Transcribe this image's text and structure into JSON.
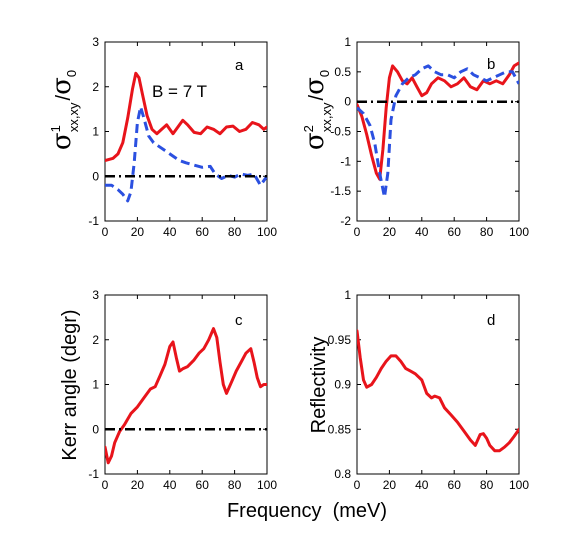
{
  "figure": {
    "xlabel": "Frequency  (meV)"
  },
  "chart_data": [
    {
      "panel": "a",
      "type": "line",
      "annotation": "B = 7 T",
      "ylabel": "σxx,xy1/σ0",
      "xlim": [
        0,
        100
      ],
      "ylim": [
        -1,
        3
      ],
      "xticks": [
        0,
        20,
        40,
        60,
        80,
        100
      ],
      "yticks": [
        -1,
        0,
        1,
        2,
        3
      ],
      "series": [
        {
          "style": "solid",
          "color": "#e8141b",
          "x": [
            0,
            5,
            8,
            11,
            14,
            17,
            19,
            21,
            23,
            26,
            29,
            32,
            35,
            38,
            42,
            45,
            48,
            51,
            55,
            59,
            63,
            67,
            71,
            75,
            79,
            83,
            87,
            91,
            95,
            98,
            100
          ],
          "y": [
            0.35,
            0.4,
            0.5,
            0.75,
            1.3,
            1.95,
            2.3,
            2.2,
            1.85,
            1.35,
            1.05,
            0.95,
            1.05,
            1.15,
            0.95,
            1.1,
            1.25,
            1.15,
            0.98,
            0.95,
            1.1,
            1.05,
            0.95,
            1.1,
            1.12,
            1.0,
            1.05,
            1.2,
            1.15,
            1.05,
            1.1
          ]
        },
        {
          "style": "dashed",
          "color": "#2b50e0",
          "x": [
            0,
            4,
            8,
            11,
            14,
            16,
            18,
            20,
            22,
            24,
            27,
            30,
            34,
            38,
            42,
            46,
            50,
            55,
            60,
            65,
            68,
            72,
            76,
            80,
            84,
            88,
            92,
            96,
            100
          ],
          "y": [
            -0.2,
            -0.2,
            -0.3,
            -0.4,
            -0.55,
            -0.35,
            0.3,
            1.2,
            1.55,
            1.3,
            0.9,
            0.75,
            0.65,
            0.55,
            0.45,
            0.35,
            0.3,
            0.25,
            0.2,
            0.22,
            0.05,
            -0.05,
            0.02,
            -0.02,
            0.05,
            0.02,
            0.05,
            -0.2,
            0.0
          ]
        },
        {
          "style": "dashdot",
          "color": "#000000",
          "x": [
            0,
            100
          ],
          "y": [
            0,
            0
          ]
        }
      ]
    },
    {
      "panel": "b",
      "type": "line",
      "ylabel": "σxx,xy2/σ0",
      "xlim": [
        0,
        100
      ],
      "ylim": [
        -2,
        1
      ],
      "xticks": [
        0,
        20,
        40,
        60,
        80,
        100
      ],
      "yticks": [
        -2,
        -1.5,
        -1,
        -0.5,
        0,
        0.5,
        1
      ],
      "series": [
        {
          "style": "solid",
          "color": "#e8141b",
          "x": [
            0,
            3,
            6,
            9,
            12,
            14,
            16,
            18,
            20,
            22,
            25,
            28,
            31,
            34,
            37,
            40,
            43,
            46,
            50,
            54,
            58,
            62,
            66,
            70,
            74,
            78,
            82,
            86,
            90,
            94,
            97,
            100
          ],
          "y": [
            -0.05,
            -0.25,
            -0.55,
            -0.9,
            -1.2,
            -1.3,
            -0.8,
            -0.1,
            0.4,
            0.6,
            0.5,
            0.35,
            0.3,
            0.4,
            0.25,
            0.1,
            0.15,
            0.3,
            0.4,
            0.35,
            0.25,
            0.3,
            0.4,
            0.25,
            0.2,
            0.35,
            0.3,
            0.35,
            0.3,
            0.45,
            0.6,
            0.65
          ]
        },
        {
          "style": "dashed",
          "color": "#2b50e0",
          "x": [
            0,
            4,
            8,
            11,
            14,
            17,
            19,
            21,
            24,
            28,
            32,
            36,
            40,
            44,
            48,
            52,
            56,
            60,
            64,
            68,
            72,
            76,
            80,
            84,
            88,
            92,
            96,
            100
          ],
          "y": [
            -0.1,
            -0.2,
            -0.4,
            -0.7,
            -1.2,
            -1.6,
            -1.2,
            -0.3,
            0.1,
            0.3,
            0.4,
            0.45,
            0.55,
            0.6,
            0.5,
            0.45,
            0.45,
            0.4,
            0.5,
            0.55,
            0.45,
            0.4,
            0.35,
            0.4,
            0.45,
            0.5,
            0.5,
            0.3
          ]
        },
        {
          "style": "dashdot",
          "color": "#000000",
          "x": [
            0,
            100
          ],
          "y": [
            0,
            0
          ]
        }
      ]
    },
    {
      "panel": "c",
      "type": "line",
      "ylabel": "Kerr angle (degr)",
      "xlim": [
        0,
        100
      ],
      "ylim": [
        -1,
        3
      ],
      "xticks": [
        0,
        20,
        40,
        60,
        80,
        100
      ],
      "yticks": [
        -1,
        0,
        1,
        2,
        3
      ],
      "series": [
        {
          "style": "solid",
          "color": "#e8141b",
          "x": [
            0,
            2,
            4,
            6,
            9,
            12,
            16,
            20,
            24,
            28,
            31,
            34,
            37,
            40,
            42,
            44,
            46,
            48,
            51,
            55,
            58,
            61,
            64,
            67,
            69,
            71,
            73,
            75,
            78,
            81,
            84,
            87,
            90,
            92,
            94,
            96,
            98,
            100
          ],
          "y": [
            -0.4,
            -0.75,
            -0.6,
            -0.3,
            -0.05,
            0.1,
            0.35,
            0.5,
            0.7,
            0.9,
            0.95,
            1.2,
            1.45,
            1.85,
            1.95,
            1.6,
            1.3,
            1.35,
            1.4,
            1.55,
            1.7,
            1.8,
            2.0,
            2.25,
            2.05,
            1.5,
            1.0,
            0.8,
            1.05,
            1.3,
            1.5,
            1.7,
            1.8,
            1.5,
            1.15,
            0.95,
            1.0,
            1.0
          ]
        },
        {
          "style": "dashdot",
          "color": "#000000",
          "x": [
            0,
            100
          ],
          "y": [
            0,
            0
          ]
        }
      ]
    },
    {
      "panel": "d",
      "type": "line",
      "ylabel": "Reflectivity",
      "xlim": [
        0,
        100
      ],
      "ylim": [
        0.8,
        1
      ],
      "xticks": [
        0,
        20,
        40,
        60,
        80,
        100
      ],
      "yticks": [
        0.8,
        0.85,
        0.9,
        0.95,
        1
      ],
      "series": [
        {
          "style": "solid",
          "color": "#e8141b",
          "x": [
            0,
            2,
            4,
            6,
            9,
            12,
            15,
            18,
            21,
            24,
            27,
            30,
            33,
            36,
            40,
            43,
            46,
            48,
            51,
            54,
            58,
            62,
            66,
            70,
            73,
            76,
            78,
            80,
            82,
            85,
            88,
            91,
            94,
            97,
            100
          ],
          "y": [
            0.96,
            0.93,
            0.905,
            0.897,
            0.9,
            0.908,
            0.918,
            0.926,
            0.932,
            0.932,
            0.926,
            0.918,
            0.915,
            0.912,
            0.905,
            0.89,
            0.885,
            0.887,
            0.885,
            0.874,
            0.866,
            0.858,
            0.848,
            0.838,
            0.832,
            0.844,
            0.845,
            0.84,
            0.832,
            0.826,
            0.826,
            0.83,
            0.835,
            0.842,
            0.85
          ]
        }
      ]
    }
  ]
}
